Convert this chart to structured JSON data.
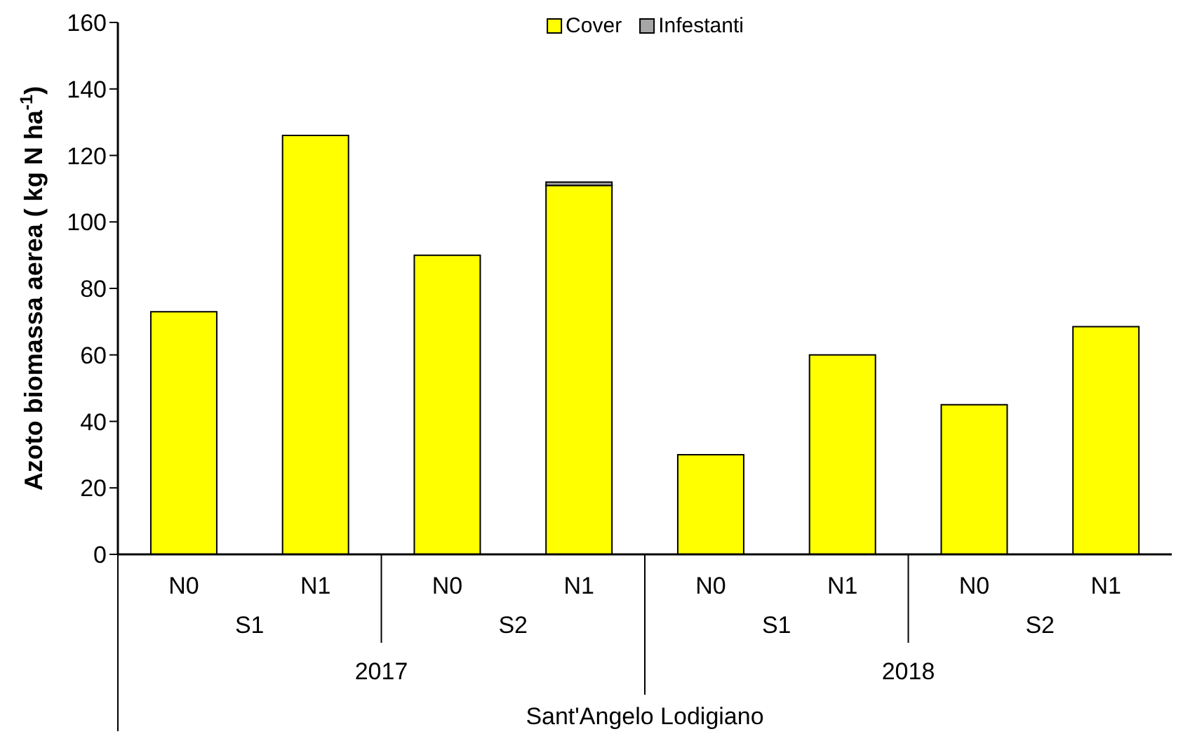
{
  "chart_data": {
    "type": "bar",
    "stacked": true,
    "ylabel": "Azoto biomassa aerea ( kg N ha$^{-1}$)",
    "categories": [
      "N0",
      "N1",
      "N0",
      "N1",
      "N0",
      "N1",
      "N0",
      "N1"
    ],
    "series": [
      {
        "name": "Cover",
        "color": "#ffff00",
        "values": [
          73,
          126,
          90,
          111,
          30,
          60,
          45,
          68.5
        ]
      },
      {
        "name": "Infestanti",
        "color": "#a6a6a6",
        "values": [
          0,
          0,
          0,
          1,
          0,
          0,
          0,
          0
        ]
      }
    ],
    "ylim": [
      0,
      160
    ],
    "yticks": [
      0,
      20,
      40,
      60,
      80,
      100,
      120,
      140,
      160
    ],
    "legend": "top",
    "grid": false,
    "annotations": [
      "S1",
      "S2",
      "S1",
      "S2",
      "2017",
      "2018",
      "Sant'Angelo Lodigiano"
    ]
  }
}
